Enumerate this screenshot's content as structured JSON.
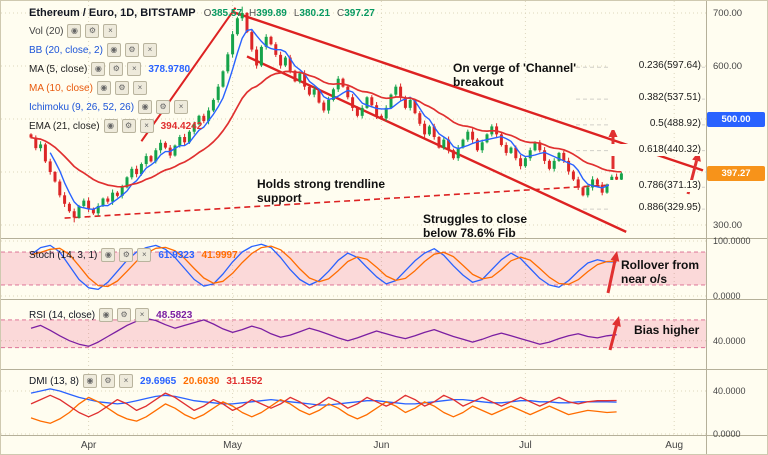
{
  "header": {
    "symbol": "Ethereum / Euro, 1D, BITSTAMP",
    "ohlc": [
      {
        "k": "O",
        "v": "385.57"
      },
      {
        "k": "H",
        "v": "399.89"
      },
      {
        "k": "L",
        "v": "380.21"
      },
      {
        "k": "C",
        "v": "397.27"
      }
    ]
  },
  "icons": {
    "eye": "◉",
    "gear": "⚙",
    "close": "×"
  },
  "legend_rows": [
    {
      "label": "Vol (20)",
      "color": "#444444"
    },
    {
      "label": "BB (20, close, 2)",
      "color": "#1c54d8"
    },
    {
      "label": "MA (5, close)",
      "color": "#222222",
      "value": "378.9780",
      "value_color": "#2962ff"
    },
    {
      "label": "MA (10, close)",
      "color": "#e8590c"
    },
    {
      "label": "Ichimoku (9, 26, 52, 26)",
      "color": "#1c54d8"
    },
    {
      "label": "EMA (21, close)",
      "color": "#222222",
      "value": "394.4242",
      "value_color": "#e03030"
    }
  ],
  "panes": {
    "stoch": {
      "label": "Stoch (14, 3, 1)",
      "values": [
        {
          "v": "61.9323",
          "color": "#2962ff"
        },
        {
          "v": "41.9997",
          "color": "#ff6d00"
        }
      ],
      "axis": [
        {
          "text": "100.0000",
          "v": 100
        },
        {
          "text": "0.0000",
          "v": 0
        }
      ]
    },
    "rsi": {
      "label": "RSI (14, close)",
      "values": [
        {
          "v": "48.5823",
          "color": "#7b1fa2"
        }
      ],
      "axis": [
        {
          "text": "40.0000",
          "v": 40
        }
      ]
    },
    "dmi": {
      "label": "DMI (13, 8)",
      "values": [
        {
          "v": "29.6965",
          "color": "#2962ff"
        },
        {
          "v": "20.6030",
          "color": "#ff6d00"
        },
        {
          "v": "31.1552",
          "color": "#e03030"
        }
      ],
      "axis": [
        {
          "text": "40.0000",
          "v": 40
        },
        {
          "text": "0.0000",
          "v": 0
        }
      ]
    }
  },
  "price_axis": {
    "labels": [
      {
        "text": "700.00",
        "v": 700
      },
      {
        "text": "600.00",
        "v": 600
      },
      {
        "text": "300.00",
        "v": 300
      }
    ],
    "badges": [
      {
        "text": "500.00",
        "v": 500,
        "bg": "#2962ff"
      },
      {
        "text": "397.27",
        "v": 397.27,
        "bg": "#f7931a"
      }
    ]
  },
  "time_axis": [
    "Apr",
    "May",
    "Jun",
    "Jul",
    "Aug"
  ],
  "annotations": {
    "channel_breakout": "On verge of 'Channel'\nbreakout",
    "trendline_support": "Holds strong trendline\nsupport",
    "fib_struggle": "Struggles to close\nbelow 78.6% Fib",
    "stoch_note": "Rollover from\nnear o/s",
    "rsi_note": "Bias higher"
  },
  "fib": {
    "labels": [
      "0.236(597.64)",
      "0.382(537.51)",
      "0.5(488.92)",
      "0.618(440.32)",
      "0.786(371.13)",
      "0.886(329.95)"
    ],
    "levels": [
      597.64,
      537.51,
      488.92,
      440.32,
      371.13,
      329.95
    ]
  },
  "chart_data": {
    "type": "candlestick",
    "title": "Ethereum / Euro, 1D, BITSTAMP",
    "months": [
      "Apr",
      "May",
      "Jun",
      "Jul",
      "Aug"
    ],
    "month_day_index": [
      12,
      42,
      73,
      103,
      134
    ],
    "price_range": [
      300,
      700
    ],
    "closes": [
      465,
      445,
      452,
      420,
      400,
      382,
      356,
      340,
      326,
      314,
      336,
      346,
      330,
      322,
      336,
      350,
      344,
      361,
      355,
      371,
      390,
      406,
      396,
      415,
      430,
      420,
      441,
      455,
      446,
      431,
      450,
      466,
      456,
      476,
      490,
      506,
      496,
      516,
      536,
      561,
      590,
      622,
      660,
      690,
      700,
      664,
      631,
      601,
      636,
      655,
      641,
      621,
      601,
      616,
      591,
      571,
      586,
      561,
      546,
      556,
      531,
      516,
      536,
      556,
      576,
      561,
      541,
      521,
      506,
      521,
      541,
      526,
      506,
      501,
      521,
      546,
      561,
      541,
      521,
      536,
      511,
      491,
      471,
      486,
      466,
      446,
      461,
      441,
      426,
      446,
      461,
      476,
      461,
      441,
      456,
      471,
      486,
      471,
      451,
      436,
      446,
      426,
      411,
      426,
      441,
      456,
      441,
      421,
      406,
      421,
      436,
      421,
      401,
      386,
      371,
      356,
      371,
      386,
      376,
      361,
      376,
      391,
      385.6,
      397.27
    ],
    "last_candle": {
      "o": 385.57,
      "h": 399.89,
      "l": 380.21,
      "c": 397.27
    },
    "high_point": 712,
    "low_point": 305,
    "lines": {
      "channel_upper": {
        "d1": 42,
        "p1": 702,
        "d2": 140,
        "p2": 403
      },
      "channel_lower": {
        "d1": 45,
        "p1": 618,
        "d2": 124,
        "p2": 287
      },
      "rally": {
        "d1": 23,
        "p1": 458,
        "d2": 42.6,
        "p2": 710
      },
      "support": {
        "d1": 7,
        "p1": 313,
        "d2": 127,
        "p2": 379
      }
    },
    "stoch_k": [
      75,
      88,
      92,
      80,
      55,
      30,
      15,
      12,
      25,
      45,
      65,
      80,
      88,
      92,
      85,
      70,
      50,
      30,
      18,
      22,
      40,
      62,
      80,
      90,
      94,
      88,
      70,
      48,
      30,
      20,
      28,
      45,
      65,
      78,
      70,
      52,
      35,
      22,
      28,
      46,
      64,
      78,
      86,
      74,
      55,
      38,
      25,
      30,
      48,
      66,
      78,
      68,
      50,
      32,
      20,
      16,
      28,
      45,
      60,
      66,
      62,
      61.9
    ],
    "rsi": [
      58,
      62,
      55,
      47,
      40,
      35,
      32,
      38,
      46,
      54,
      62,
      68,
      72,
      69,
      63,
      58,
      62,
      66,
      70,
      64,
      57,
      52,
      56,
      61,
      57,
      50,
      45,
      48,
      53,
      58,
      54,
      49,
      44,
      40,
      44,
      49,
      54,
      50,
      46,
      43,
      47,
      52,
      56,
      51,
      46,
      42,
      38,
      42,
      47,
      51,
      47,
      43,
      39,
      35,
      38,
      43,
      47,
      50,
      46,
      44,
      47,
      48.6
    ],
    "dmi_series": [
      {
        "name": "ADX",
        "color": "#2962ff",
        "values": [
          38,
          40,
          42,
          40,
          37,
          34,
          32,
          30,
          29,
          28,
          29,
          31,
          33,
          35,
          36,
          35,
          33,
          31,
          30,
          29,
          28,
          28,
          29,
          30,
          31,
          32,
          31,
          30,
          29,
          28,
          27,
          27,
          28,
          29,
          30,
          31,
          31,
          30,
          29,
          28,
          28,
          29,
          30,
          31,
          32,
          32,
          31,
          30,
          29,
          29,
          30,
          31,
          31,
          30,
          30,
          29,
          29,
          30,
          30,
          30,
          30,
          29.7
        ]
      },
      {
        "name": "-DI",
        "color": "#ff6d00",
        "values": [
          15,
          12,
          10,
          14,
          20,
          28,
          34,
          30,
          24,
          18,
          14,
          12,
          16,
          22,
          28,
          24,
          18,
          14,
          18,
          24,
          30,
          26,
          20,
          16,
          20,
          26,
          32,
          28,
          22,
          18,
          22,
          28,
          24,
          18,
          14,
          18,
          24,
          30,
          26,
          20,
          24,
          30,
          26,
          20,
          16,
          20,
          26,
          22,
          18,
          22,
          26,
          22,
          18,
          22,
          26,
          22,
          18,
          20,
          22,
          21,
          20,
          20.6
        ]
      },
      {
        "name": "+DI",
        "color": "#e03030",
        "values": [
          28,
          32,
          36,
          32,
          26,
          20,
          16,
          20,
          26,
          32,
          28,
          22,
          26,
          32,
          38,
          34,
          28,
          22,
          26,
          32,
          28,
          22,
          26,
          32,
          28,
          24,
          28,
          34,
          30,
          24,
          28,
          34,
          30,
          24,
          28,
          34,
          30,
          26,
          30,
          36,
          32,
          26,
          30,
          36,
          32,
          26,
          30,
          34,
          30,
          26,
          30,
          34,
          30,
          26,
          30,
          34,
          30,
          28,
          30,
          31,
          31,
          31.2
        ]
      }
    ],
    "stoch_band": [
      20,
      80
    ],
    "rsi_band": [
      30,
      70
    ]
  },
  "colors": {
    "up": "#16a34a",
    "down": "#dc2626",
    "ma_fast": "#2962ff",
    "ma_slow": "#e03030",
    "channel": "#dd2222",
    "support": "#e03030",
    "band": "rgba(233,30,99,0.16)",
    "band_edge": "rgba(194,24,91,0.55)",
    "arrow": "#e03030",
    "grid": "#ddd6bd"
  }
}
